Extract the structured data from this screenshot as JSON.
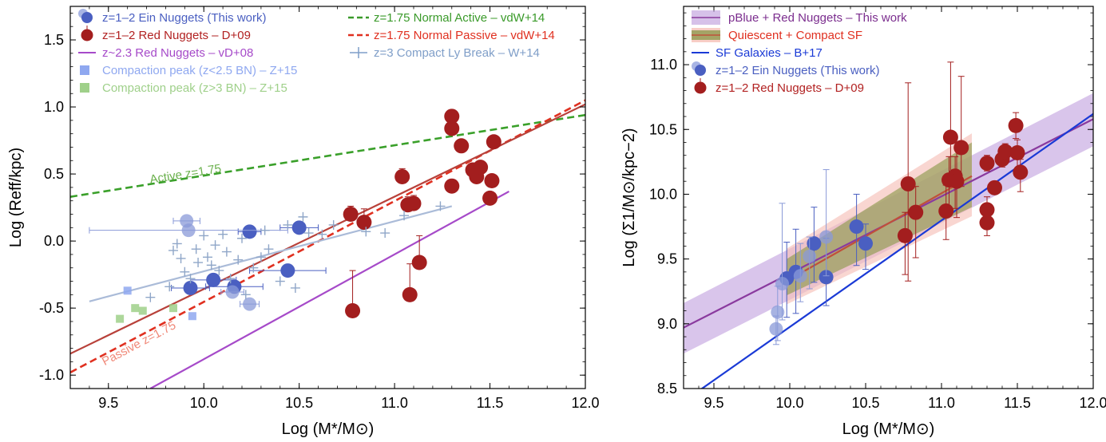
{
  "chart_data": [
    {
      "type": "scatter",
      "xlabel": "Log (M*/M⊙)",
      "ylabel": "Log (Reff/kpc)",
      "xlim": [
        9.3,
        12.0
      ],
      "ylim": [
        -1.1,
        1.75
      ],
      "xticks": [
        9.5,
        10.0,
        10.5,
        11.0,
        11.5,
        12.0
      ],
      "xtick_labels": [
        "9.5",
        "10.0",
        "10.5",
        "11.0",
        "11.5",
        "12.0"
      ],
      "yticks": [
        -1.0,
        -0.5,
        0.0,
        0.5,
        1.0,
        1.5
      ],
      "ytick_labels": [
        "-1.0",
        "-0.5",
        "0.0",
        "0.5",
        "1.0",
        "1.5"
      ],
      "grid": false,
      "legend": [
        {
          "text": "z=1–2  Ein Nuggets (This work)",
          "color": "#4a5fc1",
          "marker": "ein"
        },
        {
          "text": "z=1–2  Red Nuggets – D+09",
          "color": "#b22222",
          "marker": "red"
        },
        {
          "text": "z~2.3  Red Nuggets – vD+08",
          "color": "#a64ac9",
          "marker": "line"
        },
        {
          "text": "Compaction peak (z<2.5 BN) – Z+15",
          "color": "#8fa8f0",
          "marker": "square"
        },
        {
          "text": "Compaction peak (z>3 BN) – Z+15",
          "color": "#9fd08a",
          "marker": "square"
        },
        {
          "text": "z=1.75  Normal Active – vdW+14",
          "color": "#3a9a2a",
          "marker": "dash"
        },
        {
          "text": "z=1.75  Normal Passive – vdW+14",
          "color": "#e03020",
          "marker": "dash"
        },
        {
          "text": "z=3  Compact Ly Break – W+14",
          "color": "#7f9ec8",
          "marker": "plus"
        }
      ],
      "annotations": [
        {
          "text": "Active z=1.75",
          "x": 9.72,
          "y": 0.43,
          "color": "#6ab04c"
        },
        {
          "text": "Passive z=1.75",
          "x": 9.48,
          "y": -0.93,
          "color": "#f08878"
        }
      ],
      "lines": [
        {
          "name": "Normal Active",
          "x": [
            9.3,
            12.0
          ],
          "y": [
            0.33,
            0.94
          ],
          "color": "#3aa02a",
          "dash": true
        },
        {
          "name": "Normal Passive",
          "x": [
            9.3,
            12.0
          ],
          "y": [
            -0.98,
            1.05
          ],
          "color": "#e03020",
          "dash": true
        },
        {
          "name": "Red Nuggets fit",
          "x": [
            9.3,
            12.0
          ],
          "y": [
            -0.84,
            1.02
          ],
          "color": "#b8413a",
          "dash": false
        },
        {
          "name": "Red Nuggets vD+08",
          "x": [
            9.72,
            11.6
          ],
          "y": [
            -1.1,
            0.37
          ],
          "color": "#a64ac9",
          "dash": false
        },
        {
          "name": "Compact Ly Break fit",
          "x": [
            9.4,
            11.3
          ],
          "y": [
            -0.45,
            0.26
          ],
          "color": "#aabbd8",
          "dash": false
        }
      ],
      "series": [
        {
          "name": "Ein Nuggets",
          "color": "#4a5fc1",
          "points": [
            {
              "x": 9.93,
              "y": -0.35,
              "xerr": 0.1
            },
            {
              "x": 10.05,
              "y": -0.29,
              "xerr": 0.12
            },
            {
              "x": 10.16,
              "y": -0.34,
              "xerr": 0.15
            },
            {
              "x": 10.24,
              "y": 0.07,
              "xerr": 0.06
            },
            {
              "x": 10.44,
              "y": -0.22,
              "xerr": 0.2
            },
            {
              "x": 10.5,
              "y": 0.1,
              "xerr": 0.1
            }
          ]
        },
        {
          "name": "Ein Nuggets (faded)",
          "color": "#8a9ad8",
          "points": [
            {
              "x": 9.91,
              "y": 0.15,
              "xerr": 0.07
            },
            {
              "x": 9.92,
              "y": 0.08,
              "xerr": 0.52
            },
            {
              "x": 10.15,
              "y": -0.38,
              "xerr": 0.06
            },
            {
              "x": 10.24,
              "y": -0.47,
              "xerr": 0.05
            }
          ]
        },
        {
          "name": "Red Nuggets",
          "color": "#a31e1e",
          "points": [
            {
              "x": 10.77,
              "y": 0.2,
              "yerr": 0.06
            },
            {
              "x": 10.78,
              "y": -0.52,
              "yerr": 0.3
            },
            {
              "x": 10.84,
              "y": 0.14,
              "yerr": 0.1
            },
            {
              "x": 11.04,
              "y": 0.48,
              "yerr": 0.06
            },
            {
              "x": 11.07,
              "y": 0.27,
              "yerr": 0.06
            },
            {
              "x": 11.08,
              "y": -0.4,
              "yerr": 0.23
            },
            {
              "x": 11.1,
              "y": 0.28,
              "yerr": 0.06
            },
            {
              "x": 11.13,
              "y": -0.16,
              "yerr": 0.2
            },
            {
              "x": 11.3,
              "y": 0.93
            },
            {
              "x": 11.3,
              "y": 0.84
            },
            {
              "x": 11.3,
              "y": 0.41
            },
            {
              "x": 11.35,
              "y": 0.71
            },
            {
              "x": 11.41,
              "y": 0.53
            },
            {
              "x": 11.43,
              "y": 0.48
            },
            {
              "x": 11.45,
              "y": 0.55
            },
            {
              "x": 11.5,
              "y": 0.32
            },
            {
              "x": 11.51,
              "y": 0.45
            },
            {
              "x": 11.52,
              "y": 0.74
            }
          ]
        },
        {
          "name": "Compaction peak (z<2.5 BN)",
          "color": "#8fa8f0",
          "points": [
            {
              "x": 9.6,
              "y": -0.37
            },
            {
              "x": 9.94,
              "y": -0.56
            }
          ]
        },
        {
          "name": "Compaction peak (z>3 BN)",
          "color": "#9fd08a",
          "points": [
            {
              "x": 9.56,
              "y": -0.58
            },
            {
              "x": 9.64,
              "y": -0.5
            },
            {
              "x": 9.68,
              "y": -0.52
            },
            {
              "x": 9.84,
              "y": -0.5
            }
          ]
        },
        {
          "name": "Compact Ly Break",
          "color": "#8fa6c8",
          "points": [
            {
              "x": 9.72,
              "y": -0.42
            },
            {
              "x": 9.82,
              "y": -0.34
            },
            {
              "x": 9.84,
              "y": -0.07
            },
            {
              "x": 9.86,
              "y": -0.02
            },
            {
              "x": 9.88,
              "y": -0.13
            },
            {
              "x": 9.9,
              "y": -0.23
            },
            {
              "x": 9.93,
              "y": -0.28
            },
            {
              "x": 9.96,
              "y": -0.06
            },
            {
              "x": 9.97,
              "y": -0.16
            },
            {
              "x": 10.0,
              "y": 0.04
            },
            {
              "x": 10.02,
              "y": -0.12
            },
            {
              "x": 10.04,
              "y": -0.18
            },
            {
              "x": 10.06,
              "y": -0.03
            },
            {
              "x": 10.08,
              "y": -0.22
            },
            {
              "x": 10.1,
              "y": 0.05
            },
            {
              "x": 10.12,
              "y": -0.08
            },
            {
              "x": 10.14,
              "y": -0.28
            },
            {
              "x": 10.18,
              "y": -0.14
            },
            {
              "x": 10.2,
              "y": 0.02
            },
            {
              "x": 10.22,
              "y": -0.4
            },
            {
              "x": 10.26,
              "y": -0.2
            },
            {
              "x": 10.3,
              "y": -0.12
            },
            {
              "x": 10.32,
              "y": 0.08
            },
            {
              "x": 10.34,
              "y": -0.06
            },
            {
              "x": 10.4,
              "y": -0.3
            },
            {
              "x": 10.44,
              "y": 0.12
            },
            {
              "x": 10.48,
              "y": -0.35
            },
            {
              "x": 10.52,
              "y": 0.18
            },
            {
              "x": 10.55,
              "y": 0.06
            },
            {
              "x": 10.62,
              "y": 0.05
            },
            {
              "x": 10.68,
              "y": 0.12
            },
            {
              "x": 10.85,
              "y": 0.07
            },
            {
              "x": 10.95,
              "y": 0.06
            },
            {
              "x": 11.05,
              "y": 0.19
            },
            {
              "x": 11.24,
              "y": 0.26
            }
          ]
        }
      ]
    },
    {
      "type": "scatter",
      "xlabel": "Log (M*/M⊙)",
      "ylabel": "Log (Σ1/M⊙/kpc−2)",
      "xlim": [
        9.3,
        12.0
      ],
      "ylim": [
        8.5,
        11.45
      ],
      "xticks": [
        9.5,
        10.0,
        10.5,
        11.0,
        11.5,
        12.0
      ],
      "xtick_labels": [
        "9.5",
        "10.0",
        "10.5",
        "11.0",
        "11.5",
        "12.0"
      ],
      "yticks": [
        8.5,
        9.0,
        9.5,
        10.0,
        10.5,
        11.0
      ],
      "ytick_labels": [
        "8.5",
        "9.0",
        "9.5",
        "10.0",
        "10.5",
        "11.0"
      ],
      "grid": false,
      "legend": [
        {
          "text": "pBlue + Red Nuggets – This work",
          "color": "#7b2d8e",
          "marker": "band-purple"
        },
        {
          "text": "Quiescent + Compact SF",
          "color": "#e03020",
          "marker": "band-green"
        },
        {
          "text": "SF Galaxies – B+17",
          "color": "#1a3ad6",
          "marker": "line"
        },
        {
          "text": "z=1–2  Ein Nuggets (This work)",
          "color": "#4a5fc1",
          "marker": "ein"
        },
        {
          "text": "z=1–2  Red Nuggets – D+09",
          "color": "#b22222",
          "marker": "red"
        }
      ],
      "bands": [
        {
          "name": "pBlue + Red Nuggets",
          "x": [
            9.3,
            12.0
          ],
          "y_low": [
            8.77,
            10.37
          ],
          "y_high": [
            9.16,
            10.78
          ],
          "color": "#c4a6e0"
        },
        {
          "name": "Quiescent + Compact SF (outer)",
          "x": [
            9.98,
            11.2
          ],
          "y_low": [
            9.15,
            9.83
          ],
          "y_high": [
            9.58,
            10.47
          ],
          "color": "#f6c0b8"
        },
        {
          "name": "Quiescent + Compact SF (inner)",
          "x": [
            9.98,
            11.2
          ],
          "y_low": [
            9.22,
            9.9
          ],
          "y_high": [
            9.5,
            10.4
          ],
          "color": "#8f9a4e"
        }
      ],
      "lines": [
        {
          "name": "pBlue + Red Nuggets fit",
          "x": [
            9.3,
            12.0
          ],
          "y": [
            8.97,
            10.58
          ],
          "color": "#8a3a9e"
        },
        {
          "name": "Quiescent + Compact SF fit",
          "x": [
            9.98,
            11.2
          ],
          "y": [
            9.33,
            10.14
          ],
          "color": "#c0503a"
        },
        {
          "name": "SF Galaxies – B+17",
          "x": [
            9.3,
            12.0
          ],
          "y": [
            8.4,
            10.62
          ],
          "color": "#1a3ad6"
        }
      ],
      "series": [
        {
          "name": "Ein Nuggets",
          "color": "#4a5fc1",
          "points": [
            {
              "x": 9.98,
              "y": 9.35,
              "ylo": 0.3,
              "yhi": 0.28
            },
            {
              "x": 10.04,
              "y": 9.4,
              "ylo": 0.32,
              "yhi": 0.33
            },
            {
              "x": 10.16,
              "y": 9.62,
              "ylo": 0.3,
              "yhi": 0.28
            },
            {
              "x": 10.24,
              "y": 9.36,
              "ylo": 0.22,
              "yhi": 0.3
            },
            {
              "x": 10.44,
              "y": 9.75,
              "ylo": 0.3,
              "yhi": 0.25
            },
            {
              "x": 10.5,
              "y": 9.62,
              "ylo": 0.2,
              "yhi": 0.15
            }
          ]
        },
        {
          "name": "Ein Nuggets (faded)",
          "color": "#8a9ad8",
          "points": [
            {
              "x": 9.91,
              "y": 8.96,
              "ylo": 0.12,
              "yhi": 0.1
            },
            {
              "x": 9.92,
              "y": 9.09,
              "ylo": 0.22,
              "yhi": 0.2
            },
            {
              "x": 9.95,
              "y": 9.31,
              "ylo": 0.28,
              "yhi": 0.62
            },
            {
              "x": 10.07,
              "y": 9.37,
              "ylo": 0.2,
              "yhi": 0.25
            },
            {
              "x": 10.13,
              "y": 9.52,
              "ylo": 0.25,
              "yhi": 0.15
            },
            {
              "x": 10.24,
              "y": 9.67,
              "ylo": 0.3,
              "yhi": 0.52
            }
          ]
        },
        {
          "name": "Red Nuggets",
          "color": "#a31e1e",
          "points": [
            {
              "x": 10.76,
              "y": 9.68,
              "ylo": 0.3,
              "yhi": 0.18
            },
            {
              "x": 10.78,
              "y": 10.08,
              "ylo": 0.75,
              "yhi": 0.78
            },
            {
              "x": 10.83,
              "y": 9.86,
              "ylo": 0.35,
              "yhi": 0.2
            },
            {
              "x": 11.03,
              "y": 9.87,
              "ylo": 0.22,
              "yhi": 0.2
            },
            {
              "x": 11.05,
              "y": 10.11,
              "ylo": 0.25,
              "yhi": 0.18
            },
            {
              "x": 11.06,
              "y": 10.44,
              "ylo": 0.3,
              "yhi": 0.58
            },
            {
              "x": 11.09,
              "y": 10.14,
              "ylo": 0.25,
              "yhi": 0.15
            },
            {
              "x": 11.1,
              "y": 10.1,
              "ylo": 0.28,
              "yhi": 0.3
            },
            {
              "x": 11.13,
              "y": 10.36,
              "ylo": 0.3,
              "yhi": 0.55
            },
            {
              "x": 11.3,
              "y": 10.24,
              "ylo": 0.06,
              "yhi": 0.06
            },
            {
              "x": 11.3,
              "y": 9.88,
              "ylo": 0.08,
              "yhi": 0.1
            },
            {
              "x": 11.3,
              "y": 9.78,
              "ylo": 0.1,
              "yhi": 0.1
            },
            {
              "x": 11.35,
              "y": 10.05
            },
            {
              "x": 11.4,
              "y": 10.27,
              "ylo": 0.06,
              "yhi": 0.06
            },
            {
              "x": 11.42,
              "y": 10.33,
              "ylo": 0.06,
              "yhi": 0.06
            },
            {
              "x": 11.49,
              "y": 10.53,
              "ylo": 0.1,
              "yhi": 0.1
            },
            {
              "x": 11.5,
              "y": 10.32,
              "ylo": 0.15,
              "yhi": 0.1
            },
            {
              "x": 11.52,
              "y": 10.17,
              "ylo": 0.15,
              "yhi": 0.1
            }
          ]
        }
      ]
    }
  ]
}
